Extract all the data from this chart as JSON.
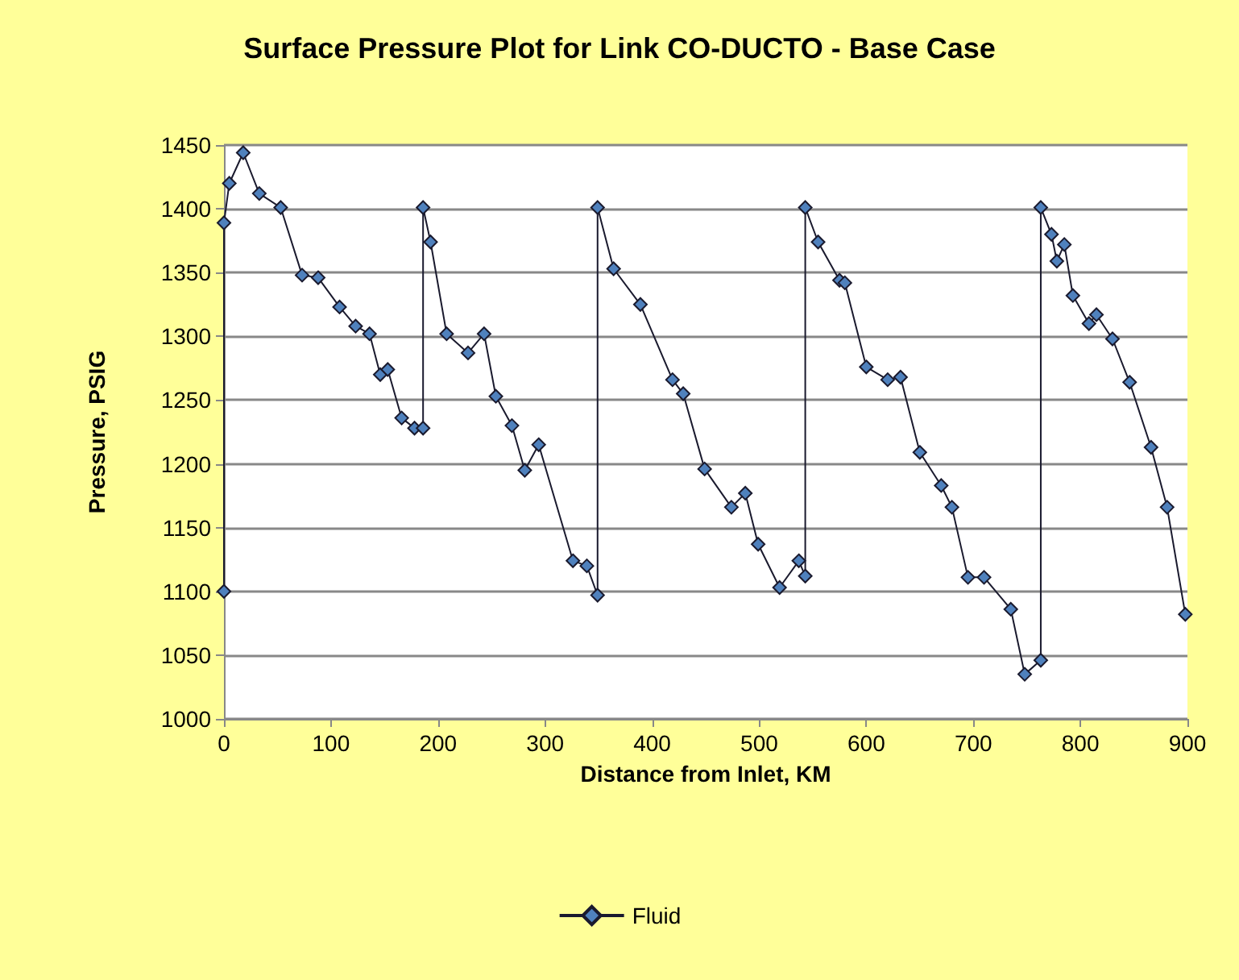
{
  "chart_data": {
    "type": "line",
    "title": "Surface Pressure Plot for Link CO-DUCTO - Base Case",
    "xlabel": "Distance from Inlet, KM",
    "ylabel": "Pressure, PSIG",
    "series": [
      {
        "name": "Fluid",
        "color": "#4f81bd",
        "x": [
          0,
          0,
          5,
          18,
          33,
          53,
          73,
          88,
          108,
          123,
          136,
          146,
          153,
          166,
          178,
          186,
          186,
          193,
          208,
          228,
          243,
          254,
          269,
          281,
          294,
          326,
          339,
          349,
          349,
          364,
          389,
          419,
          429,
          449,
          474,
          487,
          499,
          519,
          537,
          543,
          543,
          555,
          575,
          580,
          600,
          620,
          632,
          650,
          670,
          680,
          695,
          710,
          735,
          748,
          763,
          763,
          773,
          778,
          785,
          793,
          808,
          815,
          830,
          846,
          866,
          881,
          898
        ],
        "values": [
          1100,
          1389,
          1420,
          1444,
          1412,
          1401,
          1348,
          1346,
          1323,
          1308,
          1302,
          1270,
          1274,
          1236,
          1228,
          1228,
          1401,
          1374,
          1302,
          1287,
          1302,
          1253,
          1230,
          1195,
          1215,
          1124,
          1120,
          1097,
          1401,
          1353,
          1325,
          1266,
          1255,
          1196,
          1166,
          1177,
          1137,
          1103,
          1124,
          1112,
          1401,
          1374,
          1344,
          1342,
          1276,
          1266,
          1268,
          1209,
          1183,
          1166,
          1111,
          1111,
          1086,
          1035,
          1046,
          1401,
          1380,
          1359,
          1372,
          1332,
          1310,
          1317,
          1298,
          1264,
          1213,
          1166,
          1082
        ]
      }
    ],
    "xlim": [
      0,
      900
    ],
    "xticks": [
      0,
      100,
      200,
      300,
      400,
      500,
      600,
      700,
      800,
      900
    ],
    "ylim": [
      1000,
      1450
    ],
    "yticks": [
      1000,
      1050,
      1100,
      1150,
      1200,
      1250,
      1300,
      1350,
      1400,
      1450
    ],
    "grid": "y",
    "legend": "bottom",
    "marker": "diamond",
    "line_style": "solid"
  }
}
